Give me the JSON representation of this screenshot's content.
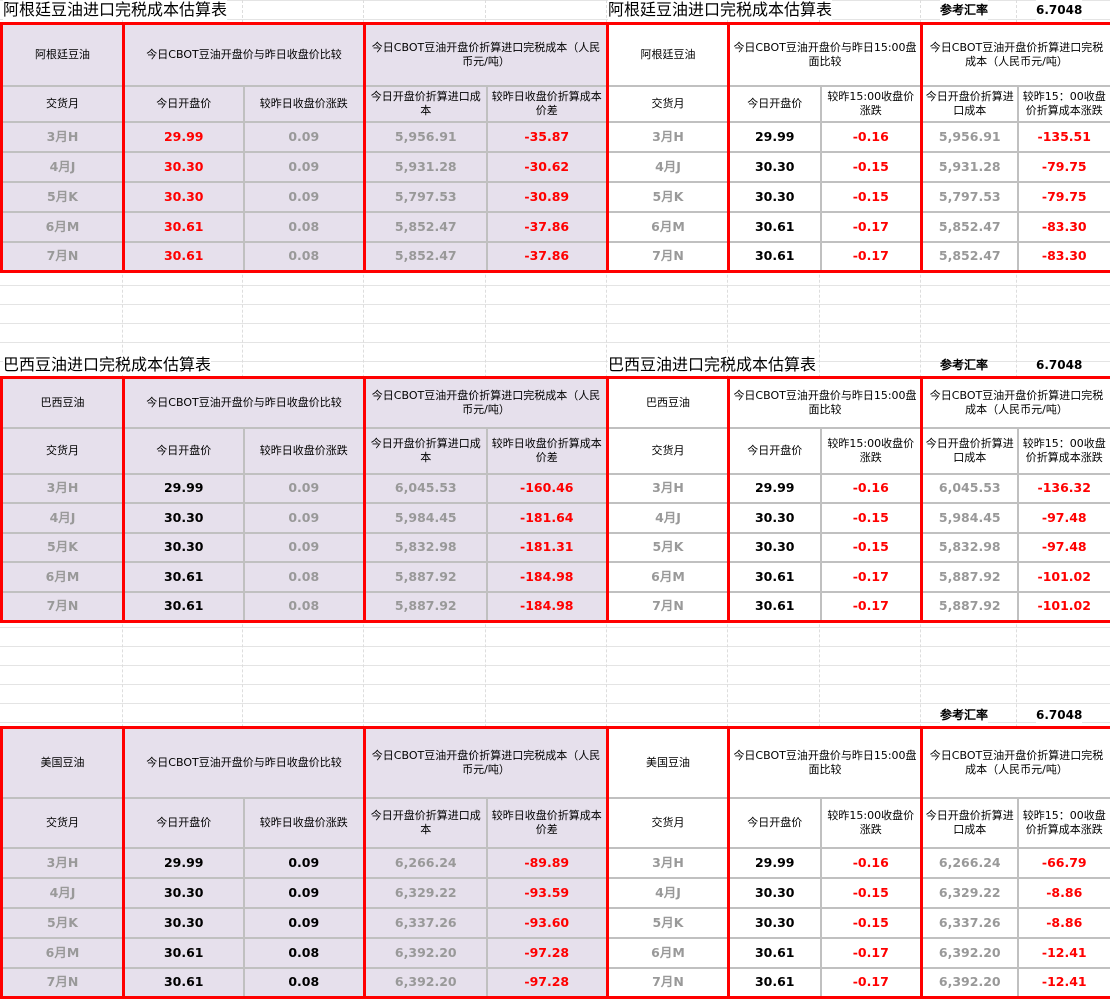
{
  "colors": {
    "red": "#ff0000",
    "lavender": "#e6e0ec",
    "gray": "#999999"
  },
  "blocks": [
    {
      "title_left": "阿根廷豆油进口完税成本估算表",
      "title_right": "阿根廷豆油进口完税成本估算表",
      "rate_label": "参考汇率",
      "rate_value": "6.7048",
      "left": {
        "name": "阿根廷豆油",
        "group1": "今日CBOT豆油开盘价与昨日收盘价比较",
        "group2": "今日CBOT豆油开盘价折算进口完税成本（人民币元/吨）",
        "sub": [
          "交货月",
          "今日开盘价",
          "较昨日收盘价涨跌",
          "今日开盘价折算进口成本",
          "较昨日收盘价折算成本价差"
        ]
      },
      "right": {
        "name": "阿根廷豆油",
        "group1": "今日CBOT豆油开盘价与昨日15:00盘面比较",
        "group2": "今日CBOT豆油开盘价折算进口完税成本（人民币元/吨）",
        "sub": [
          "交货月",
          "今日开盘价",
          "较昨15:00收盘价涨跌",
          "今日开盘价折算进口成本",
          "较昨15：00收盘价折算成本涨跌"
        ]
      },
      "rows": [
        {
          "month": "3月H",
          "l": [
            "29.99",
            "0.09",
            "5,956.91",
            "-35.87"
          ],
          "r": [
            "29.99",
            "-0.16",
            "5,956.91",
            "-135.51"
          ]
        },
        {
          "month": "4月J",
          "l": [
            "30.30",
            "0.09",
            "5,931.28",
            "-30.62"
          ],
          "r": [
            "30.30",
            "-0.15",
            "5,931.28",
            "-79.75"
          ]
        },
        {
          "month": "5月K",
          "l": [
            "30.30",
            "0.09",
            "5,797.53",
            "-30.89"
          ],
          "r": [
            "30.30",
            "-0.15",
            "5,797.53",
            "-79.75"
          ]
        },
        {
          "month": "6月M",
          "l": [
            "30.61",
            "0.08",
            "5,852.47",
            "-37.86"
          ],
          "r": [
            "30.61",
            "-0.17",
            "5,852.47",
            "-83.30"
          ]
        },
        {
          "month": "7月N",
          "l": [
            "30.61",
            "0.08",
            "5,852.47",
            "-37.86"
          ],
          "r": [
            "30.61",
            "-0.17",
            "5,852.47",
            "-83.30"
          ]
        }
      ]
    },
    {
      "title_left": "巴西豆油进口完税成本估算表",
      "title_right": "巴西豆油进口完税成本估算表",
      "rate_label": "参考汇率",
      "rate_value": "6.7048",
      "left": {
        "name": "巴西豆油",
        "group1": "今日CBOT豆油开盘价与昨日收盘价比较",
        "group2": "今日CBOT豆油开盘价折算进口完税成本（人民币元/吨）",
        "sub": [
          "交货月",
          "今日开盘价",
          "较昨日收盘价涨跌",
          "今日开盘价折算进口成本",
          "较昨日收盘价折算成本价差"
        ]
      },
      "right": {
        "name": "巴西豆油",
        "group1": "今日CBOT豆油开盘价与昨日15:00盘面比较",
        "group2": "今日CBOT豆油开盘价折算进口完税成本（人民币元/吨）",
        "sub": [
          "交货月",
          "今日开盘价",
          "较昨15:00收盘价涨跌",
          "今日开盘价折算进口成本",
          "较昨15：00收盘价折算成本涨跌"
        ]
      },
      "rows": [
        {
          "month": "3月H",
          "l": [
            "29.99",
            "0.09",
            "6,045.53",
            "-160.46"
          ],
          "r": [
            "29.99",
            "-0.16",
            "6,045.53",
            "-136.32"
          ]
        },
        {
          "month": "4月J",
          "l": [
            "30.30",
            "0.09",
            "5,984.45",
            "-181.64"
          ],
          "r": [
            "30.30",
            "-0.15",
            "5,984.45",
            "-97.48"
          ]
        },
        {
          "month": "5月K",
          "l": [
            "30.30",
            "0.09",
            "5,832.98",
            "-181.31"
          ],
          "r": [
            "30.30",
            "-0.15",
            "5,832.98",
            "-97.48"
          ]
        },
        {
          "month": "6月M",
          "l": [
            "30.61",
            "0.08",
            "5,887.92",
            "-184.98"
          ],
          "r": [
            "30.61",
            "-0.17",
            "5,887.92",
            "-101.02"
          ]
        },
        {
          "month": "7月N",
          "l": [
            "30.61",
            "0.08",
            "5,887.92",
            "-184.98"
          ],
          "r": [
            "30.61",
            "-0.17",
            "5,887.92",
            "-101.02"
          ]
        }
      ]
    },
    {
      "title_left": "",
      "title_right": "",
      "rate_label": "参考汇率",
      "rate_value": "6.7048",
      "left": {
        "name": "美国豆油",
        "group1": "今日CBOT豆油开盘价与昨日收盘价比较",
        "group2": "今日CBOT豆油开盘价折算进口完税成本（人民币元/吨）",
        "sub": [
          "交货月",
          "今日开盘价",
          "较昨日收盘价涨跌",
          "今日开盘价折算进口成本",
          "较昨日收盘价折算成本价差"
        ]
      },
      "right": {
        "name": "美国豆油",
        "group1": "今日CBOT豆油开盘价与昨日15:00盘面比较",
        "group2": "今日CBOT豆油开盘价折算进口完税成本（人民币元/吨）",
        "sub": [
          "交货月",
          "今日开盘价",
          "较昨15:00收盘价涨跌",
          "今日开盘价折算进口成本",
          "较昨15：00收盘价折算成本涨跌"
        ]
      },
      "rows": [
        {
          "month": "3月H",
          "l": [
            "29.99",
            "0.09",
            "6,266.24",
            "-89.89"
          ],
          "r": [
            "29.99",
            "-0.16",
            "6,266.24",
            "-66.79"
          ]
        },
        {
          "month": "4月J",
          "l": [
            "30.30",
            "0.09",
            "6,329.22",
            "-93.59"
          ],
          "r": [
            "30.30",
            "-0.15",
            "6,329.22",
            "-8.86"
          ]
        },
        {
          "month": "5月K",
          "l": [
            "30.30",
            "0.09",
            "6,337.26",
            "-93.60"
          ],
          "r": [
            "30.30",
            "-0.15",
            "6,337.26",
            "-8.86"
          ]
        },
        {
          "month": "6月M",
          "l": [
            "30.61",
            "0.08",
            "6,392.20",
            "-97.28"
          ],
          "r": [
            "30.61",
            "-0.17",
            "6,392.20",
            "-12.41"
          ]
        },
        {
          "month": "7月N",
          "l": [
            "30.61",
            "0.08",
            "6,392.20",
            "-97.28"
          ],
          "r": [
            "30.61",
            "-0.17",
            "6,392.20",
            "-12.41"
          ]
        }
      ]
    }
  ]
}
